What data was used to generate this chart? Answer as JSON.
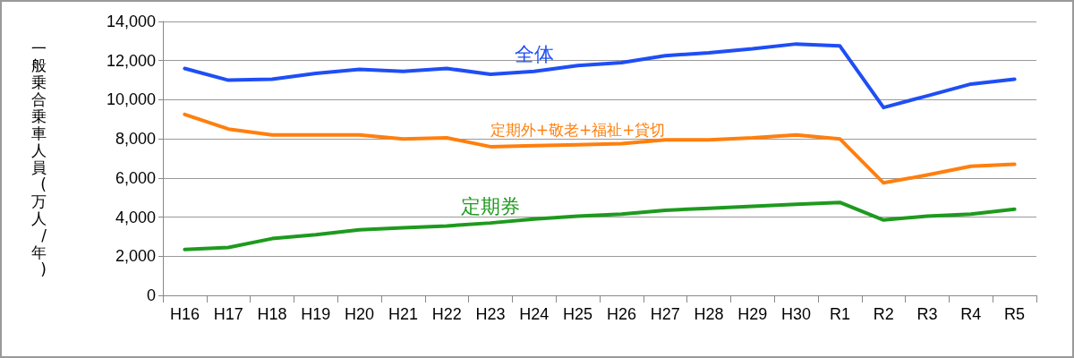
{
  "chart_data": {
    "type": "line",
    "ylabel": "一般乗合乗車人員(万人/年)",
    "categories": [
      "H16",
      "H17",
      "H18",
      "H19",
      "H20",
      "H21",
      "H22",
      "H23",
      "H24",
      "H25",
      "H26",
      "H27",
      "H28",
      "H29",
      "H30",
      "R1",
      "R2",
      "R3",
      "R4",
      "R5"
    ],
    "series": [
      {
        "name": "全体",
        "color": "#1f4ef5",
        "values": [
          11600,
          11000,
          11050,
          11350,
          11550,
          11450,
          11600,
          11300,
          11450,
          11750,
          11900,
          12250,
          12400,
          12600,
          12850,
          12750,
          9600,
          10200,
          10800,
          11050
        ]
      },
      {
        "name": "定期外+敬老+福祉+貸切",
        "color": "#ff7f0e",
        "values": [
          9250,
          8500,
          8200,
          8200,
          8200,
          8000,
          8050,
          7600,
          7650,
          7700,
          7750,
          7950,
          7950,
          8050,
          8200,
          8000,
          5750,
          6150,
          6600,
          6700
        ]
      },
      {
        "name": "定期券",
        "color": "#1e9a1e",
        "values": [
          2350,
          2450,
          2900,
          3100,
          3350,
          3450,
          3550,
          3700,
          3900,
          4050,
          4150,
          4350,
          4450,
          4550,
          4650,
          4750,
          3850,
          4050,
          4150,
          4400
        ]
      }
    ],
    "ylim": [
      0,
      14000
    ],
    "yticks": [
      0,
      {
        "value": 2000,
        "label": "2,000"
      },
      {
        "value": 4000,
        "label": "4,000"
      },
      {
        "value": 6000,
        "label": "6,000"
      },
      {
        "value": 8000,
        "label": "8,000"
      },
      {
        "value": 10000,
        "label": "10,000"
      },
      {
        "value": 12000,
        "label": "12,000"
      },
      {
        "value": 14000,
        "label": "14,000"
      }
    ],
    "grid": "y",
    "marker": "none",
    "line_style": "solid"
  }
}
